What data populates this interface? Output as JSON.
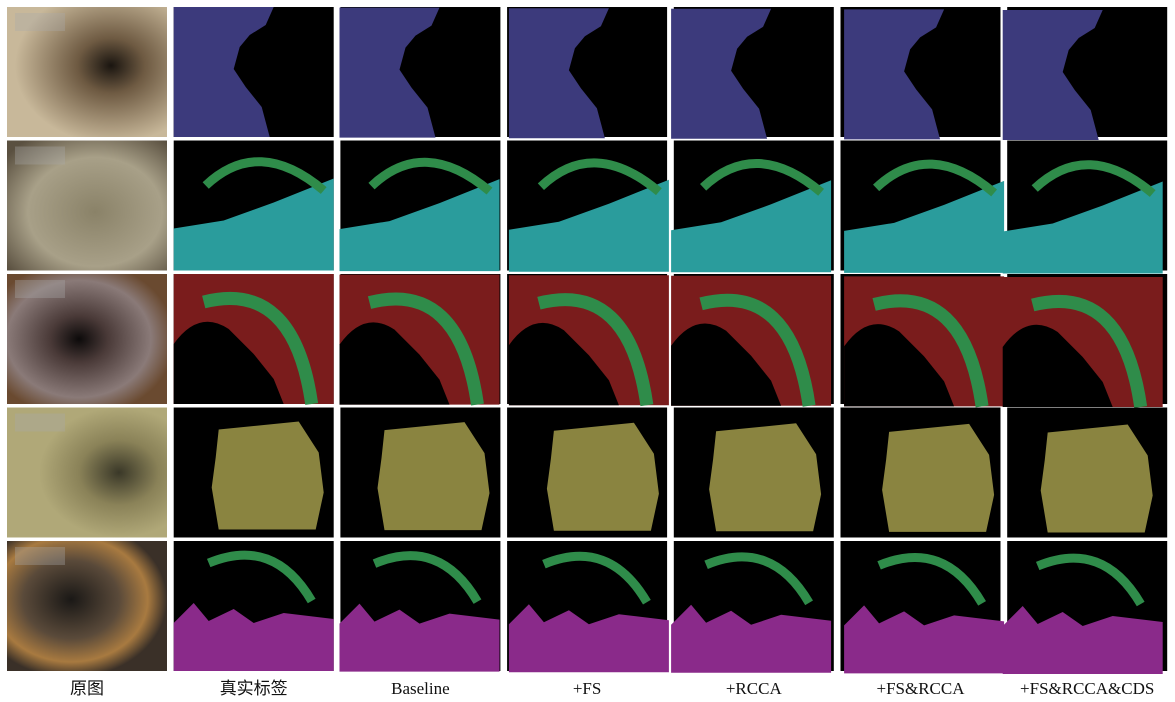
{
  "column_labels": [
    "原图",
    "真实标签",
    "Baseline",
    "+FS",
    "+RCCA",
    "+FS&RCCA",
    "+FS&RCCA&CDS"
  ]
}
